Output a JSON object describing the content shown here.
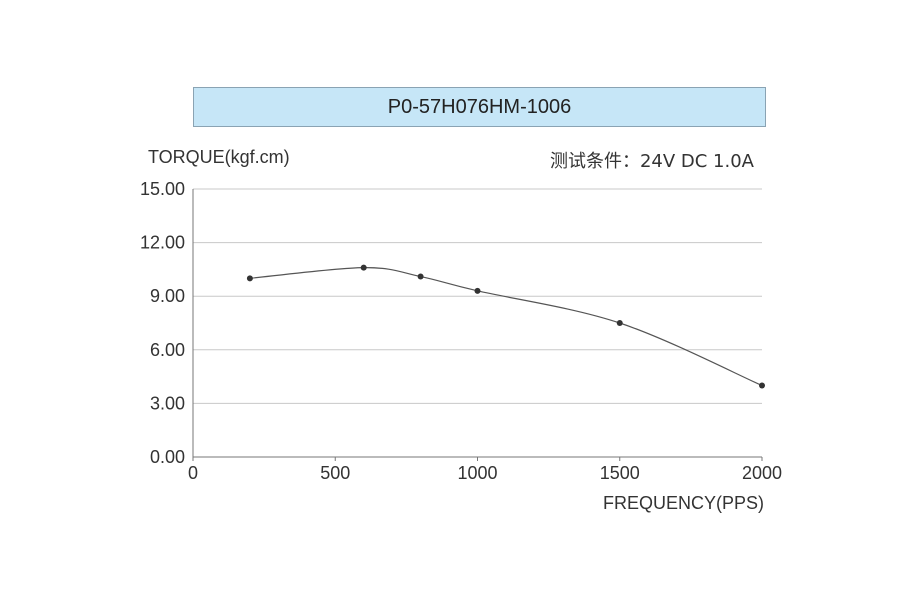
{
  "chart_data": {
    "type": "line",
    "title": "P0-57H076HM-1006",
    "subtitle": "测试条件：24V DC   1.0A",
    "ylabel": "TORQUE(kgf.cm)",
    "xlabel": "FREQUENCY(PPS)",
    "xlim": [
      0,
      2000
    ],
    "ylim": [
      0,
      15
    ],
    "xticks": [
      "0",
      "500",
      "1000",
      "1500",
      "2000"
    ],
    "yticks": [
      "0.00",
      "3.00",
      "6.00",
      "9.00",
      "12.00",
      "15.00"
    ],
    "grid": true,
    "series": [
      {
        "x": [
          200,
          600,
          800,
          1000,
          1500,
          2000
        ],
        "y": [
          10.0,
          10.6,
          10.1,
          9.3,
          7.5,
          4.0
        ]
      }
    ]
  }
}
